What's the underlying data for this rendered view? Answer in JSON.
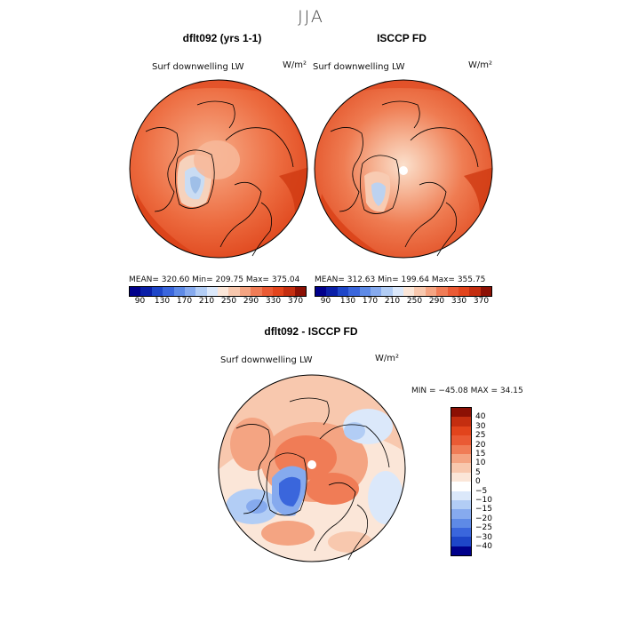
{
  "figure": {
    "season": "JJA",
    "left": {
      "title": "dflt092 (yrs 1-1)",
      "variable": "Surf downwelling LW",
      "units": "W/m²",
      "stats": "MEAN= 320.60   Min= 209.75   Max= 375.04"
    },
    "right": {
      "title": "ISCCP FD",
      "variable": "Surf downwelling LW",
      "units": "W/m²",
      "stats": "MEAN= 312.63   Min= 199.64   Max= 355.75"
    },
    "diff": {
      "title": "dflt092 - ISCCP FD",
      "variable": "Surf downwelling LW",
      "units": "W/m²",
      "stats": "MIN = −45.08 MAX =  34.15"
    },
    "abs_colorbar": {
      "ticks": [
        "90",
        "130",
        "170",
        "210",
        "250",
        "290",
        "330",
        "370"
      ],
      "colors": [
        "#00008b",
        "#0a1fa8",
        "#1e46c8",
        "#3a66dc",
        "#5e8ae6",
        "#86aaee",
        "#b2cdf5",
        "#dbe8fa",
        "#fbe6d8",
        "#f8c8ae",
        "#f4a482",
        "#f07c56",
        "#ea5a34",
        "#e2441c",
        "#c42e10",
        "#8c1004"
      ]
    },
    "diff_colorbar": {
      "labels": [
        "40",
        "30",
        "25",
        "20",
        "15",
        "10",
        "5",
        "0",
        "−5",
        "−10",
        "−15",
        "−20",
        "−25",
        "−30",
        "−40"
      ],
      "colors": [
        "#8c1004",
        "#c42e10",
        "#e2441c",
        "#ea5a34",
        "#f07c56",
        "#f4a482",
        "#f8c8ae",
        "#fbe6d8",
        "#ffffff",
        "#dbe8fa",
        "#b2cdf5",
        "#86aaee",
        "#5e8ae6",
        "#3a66dc",
        "#1e46c8",
        "#00008b"
      ]
    }
  }
}
